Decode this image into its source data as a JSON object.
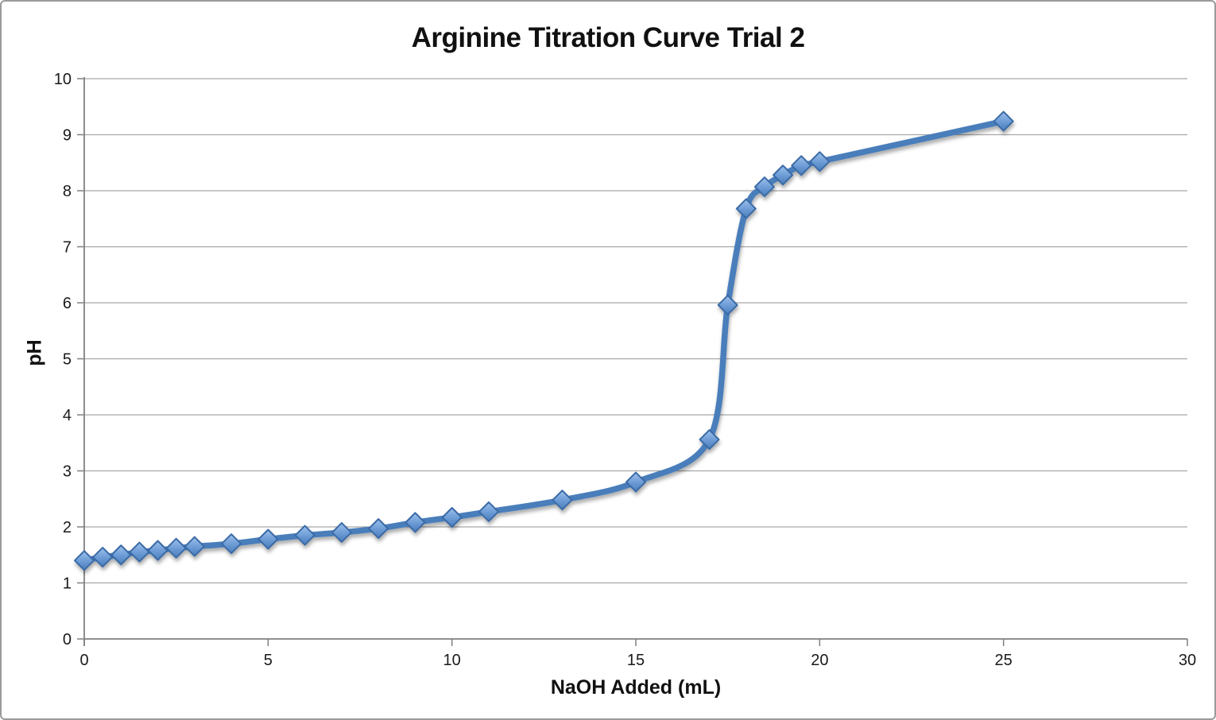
{
  "window": {
    "background": "#ffffff",
    "frame_border_color": "#9a9a9a"
  },
  "chart_data": {
    "type": "line",
    "title": "Arginine Titration Curve Trial 2",
    "xlabel": "NaOH Added (mL)",
    "ylabel": "pH",
    "legend": "none",
    "grid": "horizontal",
    "smooth": true,
    "marker": "diamond",
    "xlim": [
      0,
      30
    ],
    "ylim": [
      0,
      10
    ],
    "xticks": [
      0,
      5,
      10,
      15,
      20,
      25,
      30
    ],
    "yticks": [
      0,
      1,
      2,
      3,
      4,
      5,
      6,
      7,
      8,
      9,
      10
    ],
    "x": [
      0,
      0.5,
      1,
      1.5,
      2,
      2.5,
      3,
      4,
      5,
      6,
      7,
      8,
      9,
      10,
      11,
      13,
      15,
      17,
      17.5,
      18,
      18.5,
      19,
      19.5,
      20,
      25
    ],
    "y": [
      1.4,
      1.46,
      1.5,
      1.55,
      1.58,
      1.62,
      1.65,
      1.7,
      1.78,
      1.85,
      1.9,
      1.97,
      2.08,
      2.17,
      2.27,
      2.48,
      2.8,
      3.56,
      5.96,
      7.68,
      8.07,
      8.28,
      8.45,
      8.52,
      9.24
    ],
    "colors": {
      "line": "#4a7ebb",
      "marker_fill_top": "#9dc1ec",
      "marker_fill_mid": "#6b9ad4",
      "marker_fill_bottom": "#4a7ebb",
      "marker_border": "#3a6ba6",
      "grid": "#a6a6a6",
      "axis": "#808080",
      "tick_text": "#1a1a1a"
    }
  }
}
